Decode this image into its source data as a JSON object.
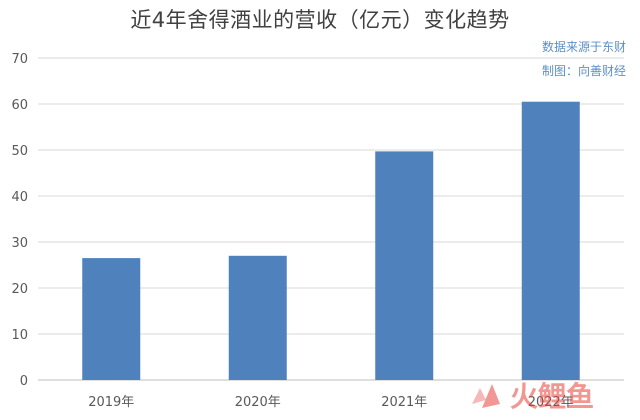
{
  "chart_data": {
    "type": "bar",
    "title": "近4年舍得酒业的营收（亿元）变化趋势",
    "categories": [
      "2019年",
      "2020年",
      "2021年",
      "2022年"
    ],
    "values": [
      26.5,
      27.0,
      49.7,
      60.5
    ],
    "ylim": [
      0,
      70
    ],
    "yticks": [
      0,
      10,
      20,
      30,
      40,
      50,
      60,
      70
    ],
    "grid": true,
    "legend": "none",
    "bar_color": "#4f81bd",
    "grid_color": "#d9d9d9",
    "annotations": [
      "数据来源于东财",
      "制图：向善财经"
    ]
  },
  "watermark": {
    "text": "火鲤鱼",
    "colors": [
      "#e8423a",
      "#f28a8a"
    ]
  }
}
